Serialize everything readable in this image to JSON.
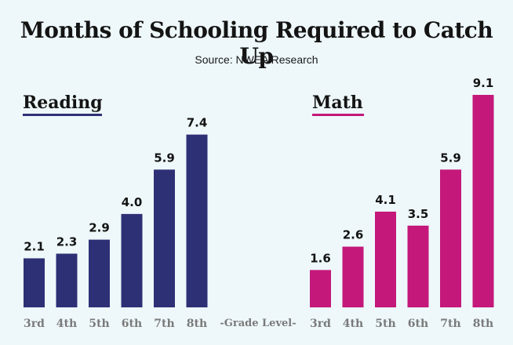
{
  "header": {
    "title": "Months of Schooling Required to Catch Up",
    "subtitle": "Source: NWEA Research"
  },
  "chart_data": {
    "type": "bar",
    "xlabel": "-Grade Level-",
    "ylabel": "",
    "ylim": [
      0,
      9.1
    ],
    "grid": false,
    "categories": [
      "3rd",
      "4th",
      "5th",
      "6th",
      "7th",
      "8th"
    ],
    "series": [
      {
        "name": "Reading",
        "color": "#2e3076",
        "values": [
          2.1,
          2.3,
          2.9,
          4.0,
          5.9,
          7.4
        ]
      },
      {
        "name": "Math",
        "color": "#c4187a",
        "values": [
          1.6,
          2.6,
          4.1,
          3.5,
          5.9,
          9.1
        ]
      }
    ]
  }
}
